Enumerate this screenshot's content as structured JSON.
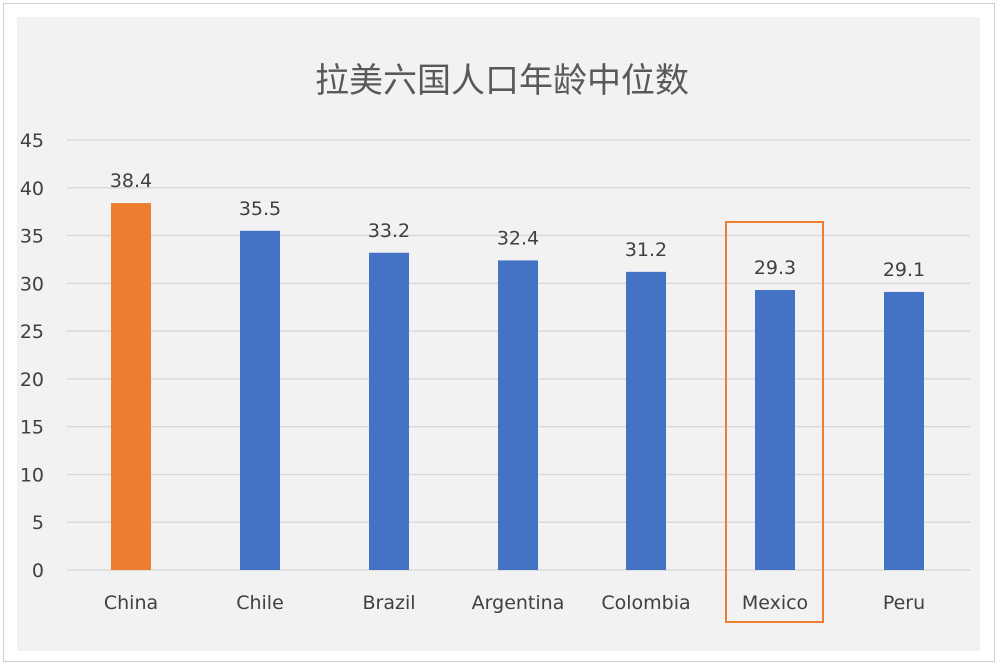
{
  "chart_data": {
    "type": "bar",
    "title": "拉美六国人口年龄中位数",
    "categories": [
      "China",
      "Chile",
      "Brazil",
      "Argentina",
      "Colombia",
      "Mexico",
      "Peru"
    ],
    "values": [
      38.4,
      35.5,
      33.2,
      32.4,
      31.2,
      29.3,
      29.1
    ],
    "value_labels": [
      "38.4",
      "35.5",
      "33.2",
      "32.4",
      "31.2",
      "29.3",
      "29.1"
    ],
    "y_ticks": [
      "0",
      "5",
      "10",
      "15",
      "20",
      "25",
      "30",
      "35",
      "40",
      "45"
    ],
    "ylim": [
      0,
      45
    ],
    "grid": true,
    "legend": "none",
    "highlight_box_category": "Mexico",
    "colors": {
      "default_bar": "#4472c4",
      "highlight_bar": "#ed7d31",
      "highlight_box": "#ed7d31",
      "gridline": "#d9d9d9",
      "background": "#f2f2f2"
    },
    "highlight_bar_category": "China"
  }
}
